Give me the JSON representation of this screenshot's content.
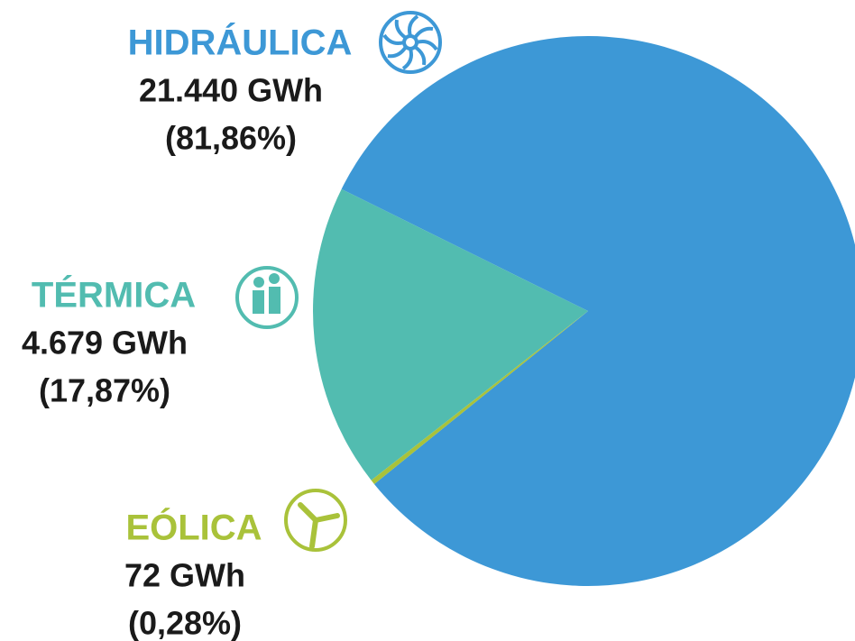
{
  "chart_data": {
    "type": "pie",
    "categories": [
      "HIDRÁULICA",
      "TÉRMICA",
      "EÓLICA"
    ],
    "values": [
      81.86,
      17.87,
      0.28
    ],
    "value_labels": [
      "(81,86%)",
      "(17,87%)",
      "(0,28%)"
    ],
    "energy_labels": [
      "21.440 GWh",
      "4.679 GWh",
      "72 GWh"
    ],
    "colors": [
      "#3d98d6",
      "#52bcb0",
      "#a9c23a"
    ]
  }
}
